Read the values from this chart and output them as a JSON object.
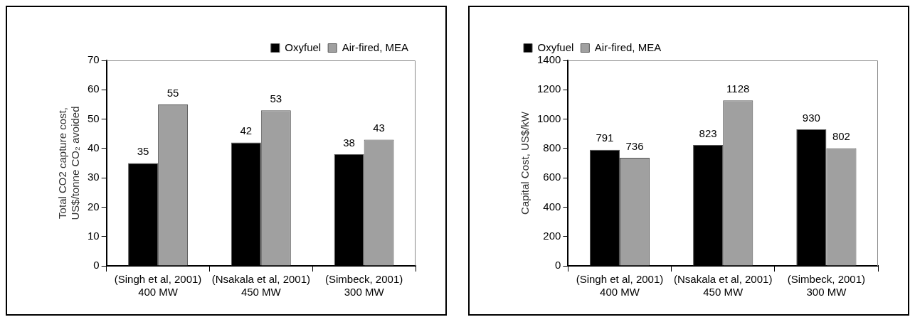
{
  "chart_data": [
    {
      "type": "bar",
      "categories": [
        "(Singh et al, 2001)\n400 MW",
        "(Nsakala et al, 2001)\n450 MW",
        "(Simbeck, 2001)\n300 MW"
      ],
      "ylabel": "Total CO2 capture cost,\nUS$/tonne CO₂ avoided",
      "series": [
        {
          "name": "Oxyfuel",
          "color": "#000000",
          "values": [
            35,
            42,
            38
          ]
        },
        {
          "name": "Air-fired, MEA",
          "color": "#a0a0a0",
          "values": [
            55,
            53,
            43
          ]
        }
      ],
      "ylim": [
        0,
        70
      ],
      "yticks": [
        0,
        10,
        20,
        30,
        40,
        50,
        60,
        70
      ],
      "grid": false,
      "legend": "top right",
      "data_labels": true
    },
    {
      "type": "bar",
      "categories": [
        "(Singh et al, 2001)\n400 MW",
        "(Nsakala et al, 2001)\n450 MW",
        "(Simbeck, 2001)\n300 MW"
      ],
      "ylabel": "Capital Cost, US$/kW",
      "series": [
        {
          "name": "Oxyfuel",
          "color": "#000000",
          "values": [
            791,
            823,
            930
          ]
        },
        {
          "name": "Air-fired, MEA",
          "color": "#a0a0a0",
          "values": [
            736,
            1128,
            802
          ]
        }
      ],
      "ylim": [
        0,
        1400
      ],
      "yticks": [
        0,
        200,
        400,
        600,
        800,
        1000,
        1200,
        1400
      ],
      "grid": false,
      "legend": "top left",
      "data_labels": true
    }
  ]
}
